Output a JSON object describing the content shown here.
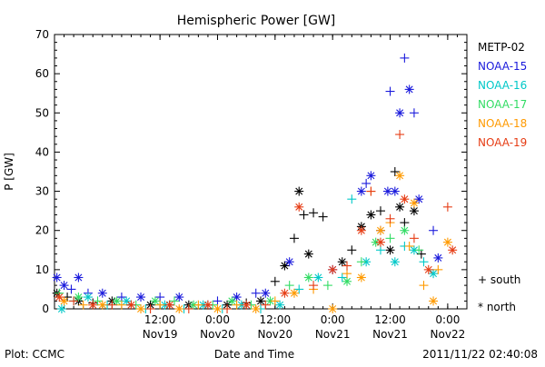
{
  "chart_data": {
    "type": "scatter",
    "title": "Hemispheric Power [GW]",
    "xlabel": "Date and Time",
    "ylabel": "P [GW]",
    "ylim": [
      0,
      70
    ],
    "xlim": [
      "2011-11-18 14:00",
      "2011-11-22 04:00"
    ],
    "y_ticks": [
      0,
      10,
      20,
      30,
      40,
      50,
      60,
      70
    ],
    "x_ticks": [
      {
        "x": "2011-11-19 12:00",
        "top": "12:00",
        "bottom": "Nov19"
      },
      {
        "x": "2011-11-20 00:00",
        "top": "0:00",
        "bottom": "Nov20"
      },
      {
        "x": "2011-11-20 12:00",
        "top": "12:00",
        "bottom": "Nov20"
      },
      {
        "x": "2011-11-21 00:00",
        "top": "0:00",
        "bottom": "Nov21"
      },
      {
        "x": "2011-11-21 12:00",
        "top": "12:00",
        "bottom": "Nov21"
      },
      {
        "x": "2011-11-22 00:00",
        "top": "0:00",
        "bottom": "Nov22"
      }
    ],
    "legend_position": "right",
    "marker_legend": {
      "south": "+ south",
      "north": "* north"
    },
    "footer_left": "Plot: CCMC",
    "footer_right": "2011/11/22 02:40:08",
    "series": [
      {
        "name": "METP-02",
        "color": "#000000",
        "points": [
          [
            "2011-11-18 14:30",
            4,
            "north"
          ],
          [
            "2011-11-18 16:40",
            3,
            "south"
          ],
          [
            "2011-11-18 19:00",
            2,
            "north"
          ],
          [
            "2011-11-18 22:00",
            1.5,
            "south"
          ],
          [
            "2011-11-19 02:00",
            2,
            "north"
          ],
          [
            "2011-11-19 06:00",
            1,
            "south"
          ],
          [
            "2011-11-19 10:00",
            1,
            "north"
          ],
          [
            "2011-11-19 14:00",
            1,
            "south"
          ],
          [
            "2011-11-19 18:00",
            1,
            "north"
          ],
          [
            "2011-11-19 22:00",
            1,
            "south"
          ],
          [
            "2011-11-20 02:00",
            1,
            "north"
          ],
          [
            "2011-11-20 06:00",
            1.5,
            "south"
          ],
          [
            "2011-11-20 09:00",
            2,
            "north"
          ],
          [
            "2011-11-20 12:00",
            7,
            "south"
          ],
          [
            "2011-11-20 14:00",
            11,
            "north"
          ],
          [
            "2011-11-20 16:00",
            18,
            "south"
          ],
          [
            "2011-11-20 17:00",
            30,
            "north"
          ],
          [
            "2011-11-20 18:00",
            24,
            "south"
          ],
          [
            "2011-11-20 19:00",
            14,
            "north"
          ],
          [
            "2011-11-20 20:00",
            24.5,
            "south"
          ],
          [
            "2011-11-20 22:00",
            23.5,
            "south"
          ],
          [
            "2011-11-21 02:00",
            12,
            "north"
          ],
          [
            "2011-11-21 04:00",
            15,
            "south"
          ],
          [
            "2011-11-21 06:00",
            21,
            "north"
          ],
          [
            "2011-11-21 08:00",
            24,
            "north"
          ],
          [
            "2011-11-21 10:00",
            25,
            "south"
          ],
          [
            "2011-11-21 12:00",
            15,
            "north"
          ],
          [
            "2011-11-21 13:00",
            35,
            "south"
          ],
          [
            "2011-11-21 14:00",
            26,
            "north"
          ],
          [
            "2011-11-21 15:00",
            22,
            "south"
          ],
          [
            "2011-11-21 17:00",
            25,
            "north"
          ],
          [
            "2011-11-21 18:30",
            14,
            "south"
          ]
        ]
      },
      {
        "name": "NOAA-15",
        "color": "#1a1adc",
        "points": [
          [
            "2011-11-18 14:30",
            8,
            "north"
          ],
          [
            "2011-11-18 16:00",
            6,
            "north"
          ],
          [
            "2011-11-18 17:30",
            5,
            "south"
          ],
          [
            "2011-11-18 19:00",
            8,
            "north"
          ],
          [
            "2011-11-18 21:00",
            4,
            "south"
          ],
          [
            "2011-11-19 00:00",
            4,
            "north"
          ],
          [
            "2011-11-19 04:00",
            3,
            "south"
          ],
          [
            "2011-11-19 08:00",
            3,
            "north"
          ],
          [
            "2011-11-19 12:00",
            3,
            "south"
          ],
          [
            "2011-11-19 16:00",
            3,
            "north"
          ],
          [
            "2011-11-20 00:00",
            2,
            "south"
          ],
          [
            "2011-11-20 04:00",
            3,
            "north"
          ],
          [
            "2011-11-20 08:00",
            4,
            "south"
          ],
          [
            "2011-11-20 10:00",
            4,
            "north"
          ],
          [
            "2011-11-20 15:00",
            12,
            "north"
          ],
          [
            "2011-11-21 00:00",
            10,
            "north"
          ],
          [
            "2011-11-21 06:00",
            30,
            "north"
          ],
          [
            "2011-11-21 07:00",
            32,
            "south"
          ],
          [
            "2011-11-21 08:00",
            34,
            "north"
          ],
          [
            "2011-11-21 10:00",
            20,
            "south"
          ],
          [
            "2011-11-21 11:30",
            30,
            "north"
          ],
          [
            "2011-11-21 12:00",
            55.5,
            "south"
          ],
          [
            "2011-11-21 13:00",
            30,
            "north"
          ],
          [
            "2011-11-21 14:00",
            50,
            "north"
          ],
          [
            "2011-11-21 15:00",
            64,
            "south"
          ],
          [
            "2011-11-21 16:00",
            56,
            "north"
          ],
          [
            "2011-11-21 17:00",
            50,
            "south"
          ],
          [
            "2011-11-21 18:00",
            28,
            "north"
          ],
          [
            "2011-11-21 21:00",
            20,
            "south"
          ],
          [
            "2011-11-21 22:00",
            13,
            "north"
          ]
        ]
      },
      {
        "name": "NOAA-16",
        "color": "#00c8c8",
        "points": [
          [
            "2011-11-18 15:30",
            0,
            "north"
          ],
          [
            "2011-11-18 18:00",
            2,
            "south"
          ],
          [
            "2011-11-18 21:00",
            3,
            "north"
          ],
          [
            "2011-11-19 01:00",
            1,
            "south"
          ],
          [
            "2011-11-19 05:00",
            2,
            "north"
          ],
          [
            "2011-11-19 09:00",
            0,
            "south"
          ],
          [
            "2011-11-19 13:00",
            1,
            "north"
          ],
          [
            "2011-11-19 17:00",
            0,
            "south"
          ],
          [
            "2011-11-19 21:00",
            1,
            "north"
          ],
          [
            "2011-11-20 01:00",
            0,
            "south"
          ],
          [
            "2011-11-20 05:00",
            1,
            "north"
          ],
          [
            "2011-11-20 09:00",
            0,
            "south"
          ],
          [
            "2011-11-20 13:00",
            1,
            "north"
          ],
          [
            "2011-11-20 17:00",
            5,
            "south"
          ],
          [
            "2011-11-20 21:00",
            8,
            "north"
          ],
          [
            "2011-11-21 02:00",
            8,
            "south"
          ],
          [
            "2011-11-21 04:00",
            28,
            "south"
          ],
          [
            "2011-11-21 07:00",
            12,
            "north"
          ],
          [
            "2011-11-21 10:00",
            15,
            "south"
          ],
          [
            "2011-11-21 13:00",
            12,
            "north"
          ],
          [
            "2011-11-21 15:00",
            16,
            "south"
          ],
          [
            "2011-11-21 17:00",
            15,
            "north"
          ],
          [
            "2011-11-21 19:00",
            12,
            "south"
          ],
          [
            "2011-11-21 21:00",
            9,
            "north"
          ]
        ]
      },
      {
        "name": "NOAA-17",
        "color": "#32dc64",
        "points": [
          [
            "2011-11-18 15:00",
            4,
            "south"
          ],
          [
            "2011-11-18 19:00",
            3,
            "north"
          ],
          [
            "2011-11-18 23:00",
            2,
            "south"
          ],
          [
            "2011-11-19 03:00",
            2,
            "north"
          ],
          [
            "2011-11-19 07:00",
            1,
            "south"
          ],
          [
            "2011-11-19 11:00",
            2,
            "north"
          ],
          [
            "2011-11-19 15:00",
            2,
            "south"
          ],
          [
            "2011-11-19 19:00",
            1,
            "north"
          ],
          [
            "2011-11-19 23:00",
            1,
            "south"
          ],
          [
            "2011-11-20 03:00",
            2,
            "north"
          ],
          [
            "2011-11-20 07:00",
            1,
            "south"
          ],
          [
            "2011-11-20 11:00",
            2,
            "north"
          ],
          [
            "2011-11-20 15:00",
            6,
            "south"
          ],
          [
            "2011-11-20 19:00",
            8,
            "north"
          ],
          [
            "2011-11-20 23:00",
            6,
            "south"
          ],
          [
            "2011-11-21 03:00",
            7,
            "north"
          ],
          [
            "2011-11-21 06:00",
            12,
            "south"
          ],
          [
            "2011-11-21 09:00",
            17,
            "north"
          ],
          [
            "2011-11-21 12:00",
            18,
            "south"
          ],
          [
            "2011-11-21 15:00",
            20,
            "north"
          ],
          [
            "2011-11-21 18:00",
            15,
            "south"
          ]
        ]
      },
      {
        "name": "NOAA-18",
        "color": "#ff9a00",
        "points": [
          [
            "2011-11-18 16:00",
            2,
            "north"
          ],
          [
            "2011-11-18 20:00",
            1,
            "south"
          ],
          [
            "2011-11-19 00:00",
            1,
            "north"
          ],
          [
            "2011-11-19 04:00",
            1,
            "south"
          ],
          [
            "2011-11-19 08:00",
            0,
            "north"
          ],
          [
            "2011-11-19 12:00",
            1,
            "south"
          ],
          [
            "2011-11-19 16:00",
            0,
            "north"
          ],
          [
            "2011-11-19 20:00",
            1,
            "south"
          ],
          [
            "2011-11-20 00:00",
            0,
            "north"
          ],
          [
            "2011-11-20 04:00",
            1,
            "south"
          ],
          [
            "2011-11-20 08:00",
            0,
            "north"
          ],
          [
            "2011-11-20 12:00",
            2,
            "south"
          ],
          [
            "2011-11-20 16:00",
            4,
            "north"
          ],
          [
            "2011-11-20 20:00",
            5,
            "south"
          ],
          [
            "2011-11-21 00:00",
            0,
            "north"
          ],
          [
            "2011-11-21 03:00",
            9,
            "south"
          ],
          [
            "2011-11-21 06:00",
            8,
            "north"
          ],
          [
            "2011-11-21 08:00",
            30,
            "south"
          ],
          [
            "2011-11-21 10:00",
            20,
            "north"
          ],
          [
            "2011-11-21 12:00",
            22,
            "south"
          ],
          [
            "2011-11-21 14:00",
            34,
            "north"
          ],
          [
            "2011-11-21 16:00",
            16,
            "south"
          ],
          [
            "2011-11-21 17:00",
            27,
            "north"
          ],
          [
            "2011-11-21 19:00",
            6,
            "south"
          ],
          [
            "2011-11-21 21:00",
            2,
            "north"
          ],
          [
            "2011-11-21 22:00",
            10,
            "south"
          ],
          [
            "2011-11-22 00:00",
            17,
            "north"
          ]
        ]
      },
      {
        "name": "NOAA-19",
        "color": "#e63c14",
        "points": [
          [
            "2011-11-18 15:00",
            3,
            "north"
          ],
          [
            "2011-11-18 18:00",
            2,
            "south"
          ],
          [
            "2011-11-18 22:00",
            1,
            "north"
          ],
          [
            "2011-11-19 02:00",
            1,
            "south"
          ],
          [
            "2011-11-19 06:00",
            1,
            "north"
          ],
          [
            "2011-11-19 10:00",
            0,
            "south"
          ],
          [
            "2011-11-19 14:00",
            1,
            "north"
          ],
          [
            "2011-11-19 18:00",
            0,
            "south"
          ],
          [
            "2011-11-19 22:00",
            1,
            "north"
          ],
          [
            "2011-11-20 02:00",
            0,
            "south"
          ],
          [
            "2011-11-20 06:00",
            1,
            "north"
          ],
          [
            "2011-11-20 10:00",
            1,
            "south"
          ],
          [
            "2011-11-20 14:00",
            4,
            "north"
          ],
          [
            "2011-11-20 17:00",
            26,
            "north"
          ],
          [
            "2011-11-20 20:00",
            6,
            "south"
          ],
          [
            "2011-11-21 00:00",
            10,
            "north"
          ],
          [
            "2011-11-21 03:00",
            11,
            "south"
          ],
          [
            "2011-11-21 06:00",
            20,
            "north"
          ],
          [
            "2011-11-21 08:00",
            30,
            "south"
          ],
          [
            "2011-11-21 10:00",
            17,
            "north"
          ],
          [
            "2011-11-21 12:00",
            23,
            "south"
          ],
          [
            "2011-11-21 14:00",
            44.5,
            "south"
          ],
          [
            "2011-11-21 15:00",
            28,
            "north"
          ],
          [
            "2011-11-21 17:00",
            18,
            "south"
          ],
          [
            "2011-11-21 20:00",
            10,
            "north"
          ],
          [
            "2011-11-22 00:00",
            26,
            "south"
          ],
          [
            "2011-11-22 01:00",
            15,
            "north"
          ]
        ]
      }
    ]
  }
}
